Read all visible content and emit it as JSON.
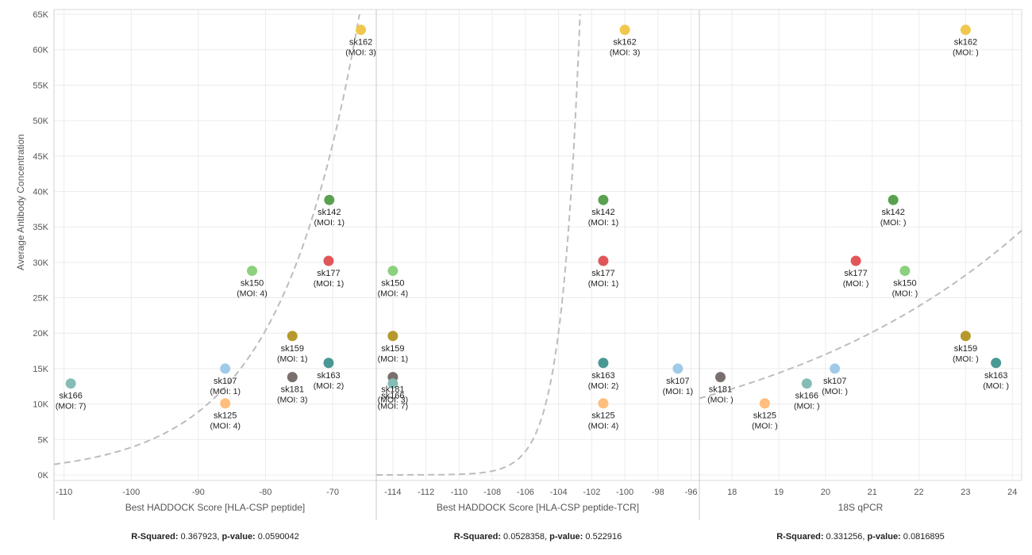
{
  "chart_data": {
    "type": "scatter",
    "ylabel": "Average Antibody Concentration",
    "ylim": [
      0,
      65000
    ],
    "yticks": [
      0,
      5000,
      10000,
      15000,
      20000,
      25000,
      30000,
      35000,
      40000,
      45000,
      50000,
      55000,
      60000,
      65000
    ],
    "ytick_labels": [
      "0K",
      "5K",
      "10K",
      "15K",
      "20K",
      "25K",
      "30K",
      "35K",
      "40K",
      "45K",
      "50K",
      "55K",
      "60K",
      "65K"
    ],
    "gridlines": true,
    "trendline": "dashed-exponential",
    "points": [
      {
        "name": "sk162",
        "color": "#f1c84e",
        "y": 62800
      },
      {
        "name": "sk142",
        "color": "#59a14f",
        "y": 38800
      },
      {
        "name": "sk177",
        "color": "#e15759",
        "y": 30200
      },
      {
        "name": "sk150",
        "color": "#8cd17d",
        "y": 28800
      },
      {
        "name": "sk159",
        "color": "#b6992d",
        "y": 19600
      },
      {
        "name": "sk163",
        "color": "#499894",
        "y": 15800
      },
      {
        "name": "sk107",
        "color": "#a0cbe8",
        "y": 15000
      },
      {
        "name": "sk181",
        "color": "#79706e",
        "y": 13800
      },
      {
        "name": "sk166",
        "color": "#86bcb6",
        "y": 12900
      },
      {
        "name": "sk125",
        "color": "#ffbe7d",
        "y": 10100
      }
    ],
    "panels": [
      {
        "xlabel": "Best HADDOCK Score [HLA-CSP peptide]",
        "xlim": [
          -111.5,
          -63.5
        ],
        "xticks": [
          -110,
          -100,
          -90,
          -80,
          -70
        ],
        "x": {
          "sk162": -65.8,
          "sk142": -70.5,
          "sk177": -70.6,
          "sk150": -82.0,
          "sk159": -76.0,
          "sk163": -70.6,
          "sk107": -86.0,
          "sk181": -76.0,
          "sk166": -109.0,
          "sk125": -86.0
        },
        "moi": {
          "sk162": "3",
          "sk142": "1",
          "sk177": "1",
          "sk150": "4",
          "sk159": "1",
          "sk163": "2",
          "sk107": "1",
          "sk181": "3",
          "sk166": "7",
          "sk125": "4"
        },
        "trend": {
          "x0": -111.5,
          "y0": 1500,
          "x1": -66.0,
          "y1": 65000
        },
        "stats": {
          "r_label": "R-Squared:",
          "r_value": "0.367923",
          "p_label": "p-value:",
          "p_value": "0.0590042"
        }
      },
      {
        "xlabel": "Best HADDOCK Score [HLA-CSP peptide-TCR]",
        "xlim": [
          -115.0,
          -95.5
        ],
        "xticks": [
          -114,
          -112,
          -110,
          -108,
          -106,
          -104,
          -102,
          -100,
          -98,
          -96
        ],
        "x": {
          "sk162": -100.0,
          "sk142": -101.3,
          "sk177": -101.3,
          "sk150": -114.0,
          "sk159": -114.0,
          "sk163": -101.3,
          "sk107": -96.8,
          "sk181": -114.0,
          "sk166": -114.0,
          "sk125": -101.3
        },
        "moi": {
          "sk162": "3",
          "sk142": "1",
          "sk177": "1",
          "sk150": "4",
          "sk159": "1",
          "sk163": "2",
          "sk107": "1",
          "sk181": "3",
          "sk166": "7",
          "sk125": "4"
        },
        "trend": {
          "x0": -115.0,
          "y0": 0,
          "x1": -102.7,
          "y1": 65000
        },
        "stats": {
          "r_label": "R-Squared:",
          "r_value": "0.0528358",
          "p_label": "p-value:",
          "p_value": "0.522916"
        }
      },
      {
        "xlabel": "18S qPCR",
        "xlim": [
          17.3,
          24.2
        ],
        "xticks": [
          18,
          19,
          20,
          21,
          22,
          23,
          24
        ],
        "x": {
          "sk162": 23.0,
          "sk142": 21.45,
          "sk177": 20.65,
          "sk150": 21.7,
          "sk159": 23.0,
          "sk163": 23.65,
          "sk107": 20.2,
          "sk181": 17.75,
          "sk166": 19.6,
          "sk125": 18.7
        },
        "moi": {
          "sk162": "",
          "sk142": "",
          "sk177": "",
          "sk150": "",
          "sk159": "",
          "sk163": "",
          "sk107": "",
          "sk181": "",
          "sk166": "",
          "sk125": ""
        },
        "trend": {
          "x0": 17.3,
          "y0": 10800,
          "x1": 24.2,
          "y1": 34500
        },
        "stats": {
          "r_label": "R-Squared:",
          "r_value": "0.331256",
          "p_label": "p-value:",
          "p_value": "0.0816895"
        }
      }
    ]
  }
}
